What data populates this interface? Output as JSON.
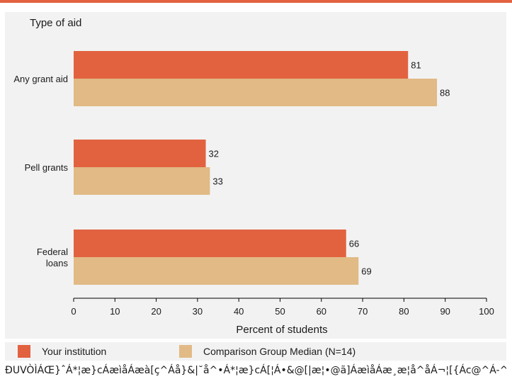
{
  "colors": {
    "institution": "#e26240",
    "comparison": "#e1ba86",
    "top_bar": "#e26240",
    "panel": "#f2f2f2",
    "axis": "#000000"
  },
  "chart_data": {
    "type": "bar",
    "orientation": "horizontal",
    "title": "Type of aid",
    "xlabel": "Percent of students",
    "ylabel": "",
    "xlim": [
      0,
      100
    ],
    "xticks": [
      0,
      10,
      20,
      30,
      40,
      50,
      60,
      70,
      80,
      90,
      100
    ],
    "categories": [
      "Any grant aid",
      "Pell grants",
      "Federal loans"
    ],
    "category_lines": [
      [
        "Any grant aid"
      ],
      [
        "Pell grants"
      ],
      [
        "Federal",
        "loans"
      ]
    ],
    "series": [
      {
        "name": "Your institution",
        "values": [
          81,
          32,
          66
        ],
        "color": "#e26240"
      },
      {
        "name": "Comparison Group Median (N=14)",
        "values": [
          88,
          33,
          69
        ],
        "color": "#e1ba86"
      }
    ],
    "grid": false,
    "legend_position": "bottom"
  },
  "footnote": "ÐUVÒÌÁŒ}ˆÁ*¦æ}cÁæìåÁæà[ç^Áå}&|˘å^•Á*¦æ}cÁ[¦Á•&@[|æ¦•@ã]ÁæìåÁæ¸æ¦å^åÁ¬¦[{Ác@^Á-^å^¦æ|"
}
